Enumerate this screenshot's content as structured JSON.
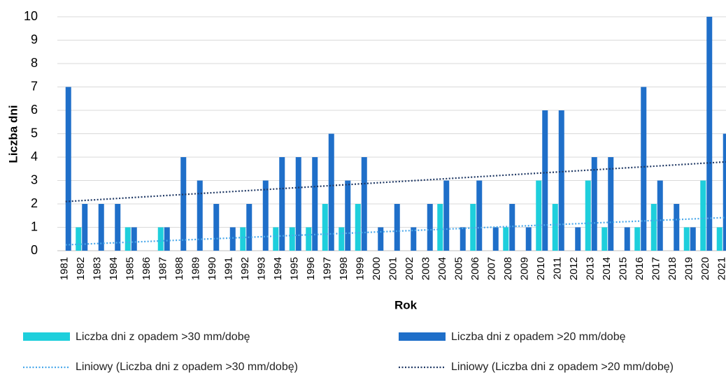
{
  "chart_data": {
    "type": "bar",
    "y_label": "Liczba dni",
    "x_label": "Rok",
    "categories": [
      "1981",
      "1982",
      "1983",
      "1984",
      "1985",
      "1986",
      "1987",
      "1988",
      "1989",
      "1990",
      "1991",
      "1992",
      "1993",
      "1994",
      "1995",
      "1996",
      "1997",
      "1998",
      "1999",
      "2000",
      "2001",
      "2002",
      "2003",
      "2004",
      "2005",
      "2006",
      "2007",
      "2008",
      "2009",
      "2010",
      "2011",
      "2012",
      "2013",
      "2014",
      "2015",
      "2016",
      "2017",
      "2018",
      "2019",
      "2020",
      "2021"
    ],
    "series": [
      {
        "name": "Liczba dni z opadem >30 mm/dobę",
        "color": "#1ecfdc",
        "values": [
          0,
          1,
          0,
          0,
          1,
          0,
          1,
          0,
          0,
          0,
          0,
          1,
          0,
          1,
          1,
          1,
          2,
          1,
          2,
          0,
          0,
          0,
          0,
          2,
          0,
          2,
          0,
          1,
          0,
          3,
          2,
          0,
          3,
          1,
          0,
          1,
          2,
          0,
          1,
          3,
          1
        ]
      },
      {
        "name": "Liczba dni z opadem >20 mm/dobę",
        "color": "#1f6fc9",
        "values": [
          7,
          2,
          2,
          2,
          1,
          0,
          1,
          4,
          3,
          2,
          1,
          2,
          3,
          4,
          4,
          4,
          5,
          3,
          4,
          1,
          2,
          1,
          2,
          3,
          1,
          3,
          1,
          2,
          1,
          6,
          6,
          1,
          4,
          4,
          1,
          7,
          3,
          2,
          1,
          10,
          5
        ]
      }
    ],
    "trendlines": [
      {
        "name": "Liniowy (Liczba dni z opadem >30 mm/dobę)",
        "color": "#4aa8ea",
        "values": [
          0.25,
          1.42
        ]
      },
      {
        "name": "Liniowy (Liczba dni z opadem >20 mm/dobę)",
        "color": "#1f3864",
        "values": [
          2.1,
          3.8
        ]
      }
    ],
    "ylim": [
      0,
      10
    ],
    "yticks": [
      0,
      1,
      2,
      3,
      4,
      5,
      6,
      7,
      8,
      9,
      10
    ],
    "grid": true
  }
}
